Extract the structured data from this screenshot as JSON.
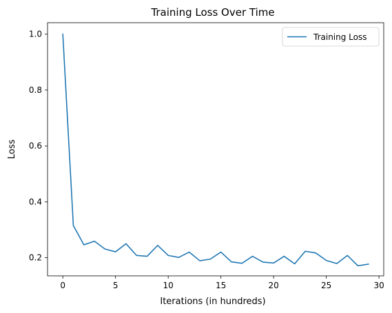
{
  "chart_data": {
    "type": "line",
    "title": "Training Loss Over Time",
    "xlabel": "Iterations (in hundreds)",
    "ylabel": "Loss",
    "xlim": [
      -1.45,
      30.45
    ],
    "ylim": [
      0.135,
      1.041
    ],
    "xticks": [
      0,
      5,
      10,
      15,
      20,
      25,
      30
    ],
    "xtick_labels": [
      "0",
      "5",
      "10",
      "15",
      "20",
      "25",
      "30"
    ],
    "yticks": [
      0.2,
      0.4,
      0.6,
      0.8,
      1.0
    ],
    "ytick_labels": [
      "0.2",
      "0.4",
      "0.6",
      "0.8",
      "1.0"
    ],
    "grid": false,
    "legend_position": "top-right",
    "series": [
      {
        "name": "Training Loss",
        "color": "#1f77b4",
        "x": [
          0,
          1,
          2,
          3,
          4,
          5,
          6,
          7,
          8,
          9,
          10,
          11,
          12,
          13,
          14,
          15,
          16,
          17,
          18,
          19,
          20,
          21,
          22,
          23,
          24,
          25,
          26,
          27,
          28,
          29
        ],
        "y": [
          1.0,
          0.315,
          0.246,
          0.259,
          0.231,
          0.221,
          0.25,
          0.208,
          0.205,
          0.244,
          0.208,
          0.201,
          0.22,
          0.189,
          0.195,
          0.22,
          0.185,
          0.18,
          0.205,
          0.184,
          0.181,
          0.205,
          0.178,
          0.223,
          0.217,
          0.19,
          0.179,
          0.208,
          0.171,
          0.177
        ]
      }
    ]
  }
}
